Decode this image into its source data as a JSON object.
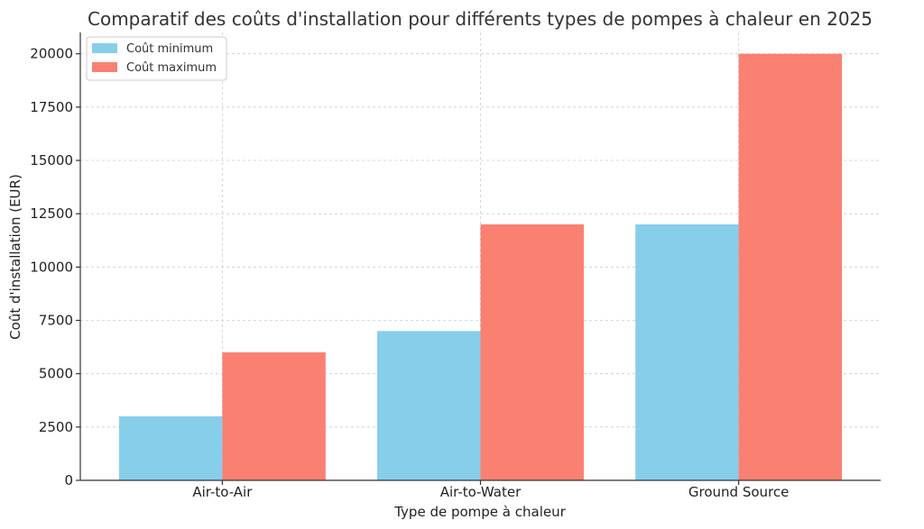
{
  "chart_data": {
    "type": "bar",
    "title": "Comparatif des coûts d'installation pour différents types de pompes à chaleur en 2025",
    "xlabel": "Type de pompe à chaleur",
    "ylabel": "Coût d'installation (EUR)",
    "categories": [
      "Air-to-Air",
      "Air-to-Water",
      "Ground Source"
    ],
    "series": [
      {
        "name": "Coût minimum",
        "values": [
          3000,
          7000,
          12000
        ],
        "color": "#87ceeb"
      },
      {
        "name": "Coût maximum",
        "values": [
          6000,
          12000,
          20000
        ],
        "color": "#fa8072"
      }
    ],
    "ylim": [
      0,
      21000
    ],
    "yticks": [
      "0",
      "2500",
      "5000",
      "7500",
      "10000",
      "12500",
      "15000",
      "17500",
      "20000"
    ],
    "grid": true,
    "legend_position": "top-left"
  }
}
